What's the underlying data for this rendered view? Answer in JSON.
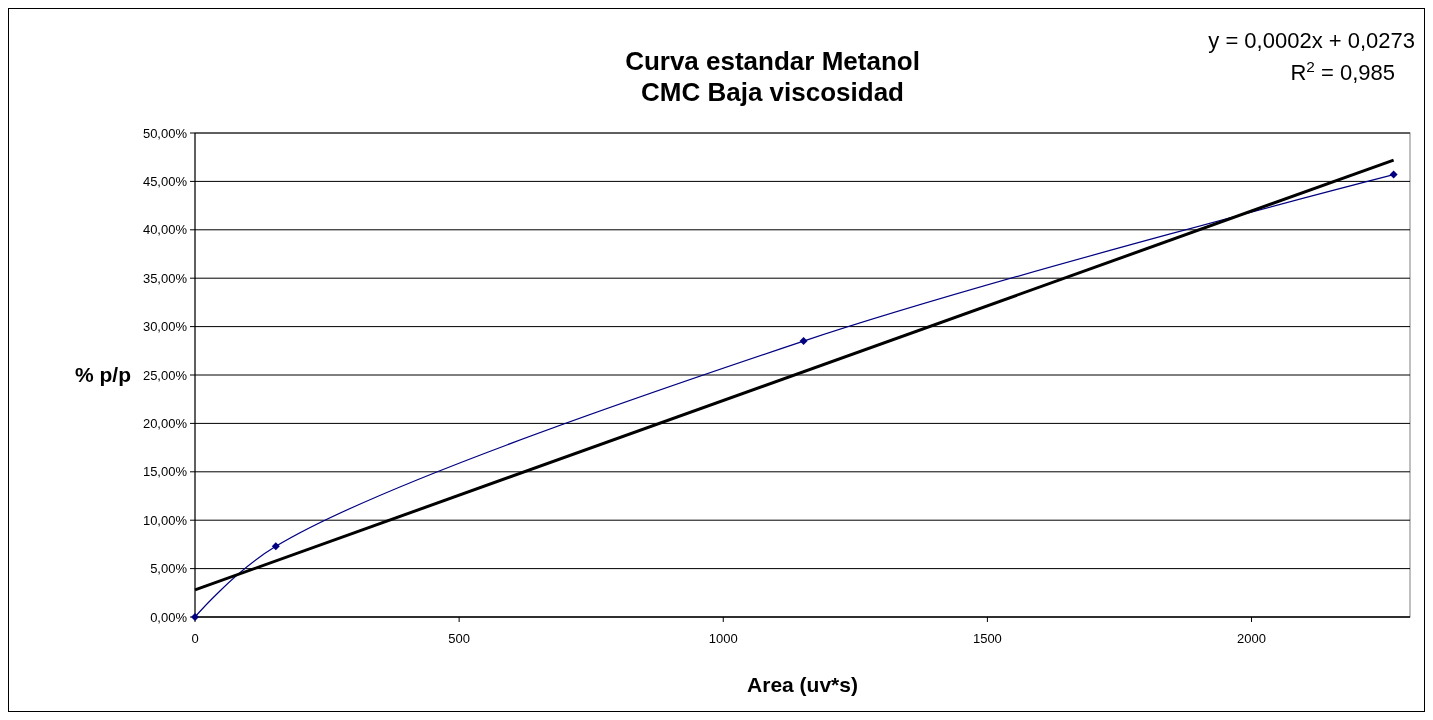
{
  "chart_data": {
    "type": "line",
    "title": "Curva estandar Metanol\nCMC Baja viscosidad",
    "xlabel": "Area (uv*s)",
    "ylabel": "% p/p",
    "annotations": [
      "y = 0,0002x + 0,0273",
      "R$^{2}$ = 0,985"
    ],
    "x": [
      0,
      153,
      1152,
      2269
    ],
    "series": [
      {
        "color": "#000080",
        "values": [
          0,
          7.3,
          28.5,
          45.7
        ]
      },
      {
        "color": "#000000",
        "x": [
          0,
          2269
        ],
        "values": [
          2.8,
          47.2
        ],
        "marker": "none"
      }
    ],
    "xlim": [
      0,
      2300
    ],
    "xticks": [
      0,
      500,
      1000,
      1500,
      2000
    ],
    "ylim": [
      0,
      50
    ],
    "yticks": [
      {
        "value": 0,
        "label": "0,00%"
      },
      {
        "value": 5,
        "label": "5,00%"
      },
      {
        "value": 10,
        "label": "10,00%"
      },
      {
        "value": 15,
        "label": "15,00%"
      },
      {
        "value": 20,
        "label": "20,00%"
      },
      {
        "value": 25,
        "label": "25,00%"
      },
      {
        "value": 30,
        "label": "30,00%"
      },
      {
        "value": 35,
        "label": "35,00%"
      },
      {
        "value": 40,
        "label": "40,00%"
      },
      {
        "value": 45,
        "label": "45,00%"
      },
      {
        "value": 50,
        "label": "50,00%"
      }
    ],
    "grid": "y",
    "marker": "diamond"
  }
}
